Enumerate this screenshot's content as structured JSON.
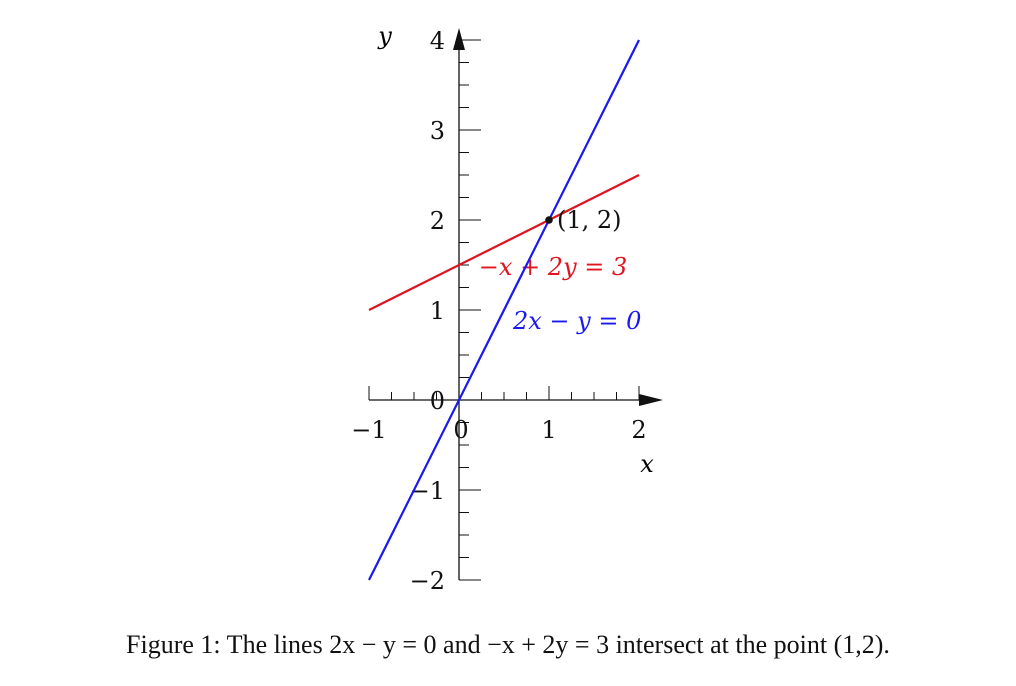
{
  "chart_data": {
    "type": "line",
    "xlabel": "x",
    "ylabel": "y",
    "xlim": [
      -1,
      2
    ],
    "ylim": [
      -2,
      4
    ],
    "x_ticks": [
      -1,
      0,
      1,
      2
    ],
    "x_tick_labels": [
      "−1",
      "0",
      "1",
      "2"
    ],
    "y_ticks": [
      -2,
      -1,
      0,
      1,
      2,
      3,
      4
    ],
    "y_tick_labels": [
      "−2",
      "−1",
      "0",
      "1",
      "2",
      "3",
      "4"
    ],
    "minor_tick_step": 0.25,
    "grid": false,
    "series": [
      {
        "name": "−x + 2y = 3",
        "color": "#e0141e",
        "x": [
          -1,
          2
        ],
        "y": [
          1,
          2.5
        ]
      },
      {
        "name": "2x − y = 0",
        "color": "#1a1aee",
        "x": [
          -1,
          2
        ],
        "y": [
          -2,
          4
        ]
      }
    ],
    "points": [
      {
        "label": "(1, 2)",
        "x": 1,
        "y": 2,
        "color": "#111111"
      }
    ]
  },
  "caption": "Figure 1: The lines 2x − y = 0 and −x + 2y = 3 intersect at the point (1,2)."
}
